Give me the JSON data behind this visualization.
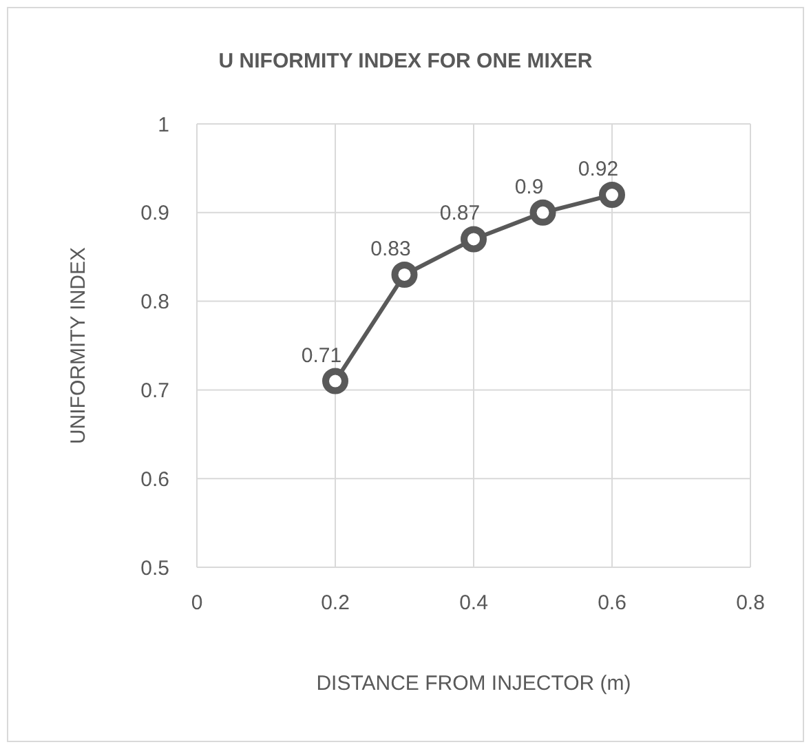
{
  "chart_data": {
    "type": "line",
    "title": "U NIFORMITY INDEX FOR ONE MIXER",
    "xlabel": "DISTANCE FROM INJECTOR (m)",
    "ylabel": "UNIFORMITY INDEX",
    "x": [
      0.2,
      0.3,
      0.4,
      0.5,
      0.6
    ],
    "series": [
      {
        "color": "#595959",
        "values": [
          0.71,
          0.83,
          0.87,
          0.9,
          0.92
        ]
      }
    ],
    "xlim": [
      0,
      0.8
    ],
    "xticks": [
      0,
      0.2,
      0.4,
      0.6,
      0.8
    ],
    "ylim": [
      0.5,
      1
    ],
    "yticks": [
      0.5,
      0.6,
      0.7,
      0.8,
      0.9,
      1
    ],
    "grid": true,
    "marker": "circle",
    "line_style": "solid",
    "data_labels": true
  }
}
